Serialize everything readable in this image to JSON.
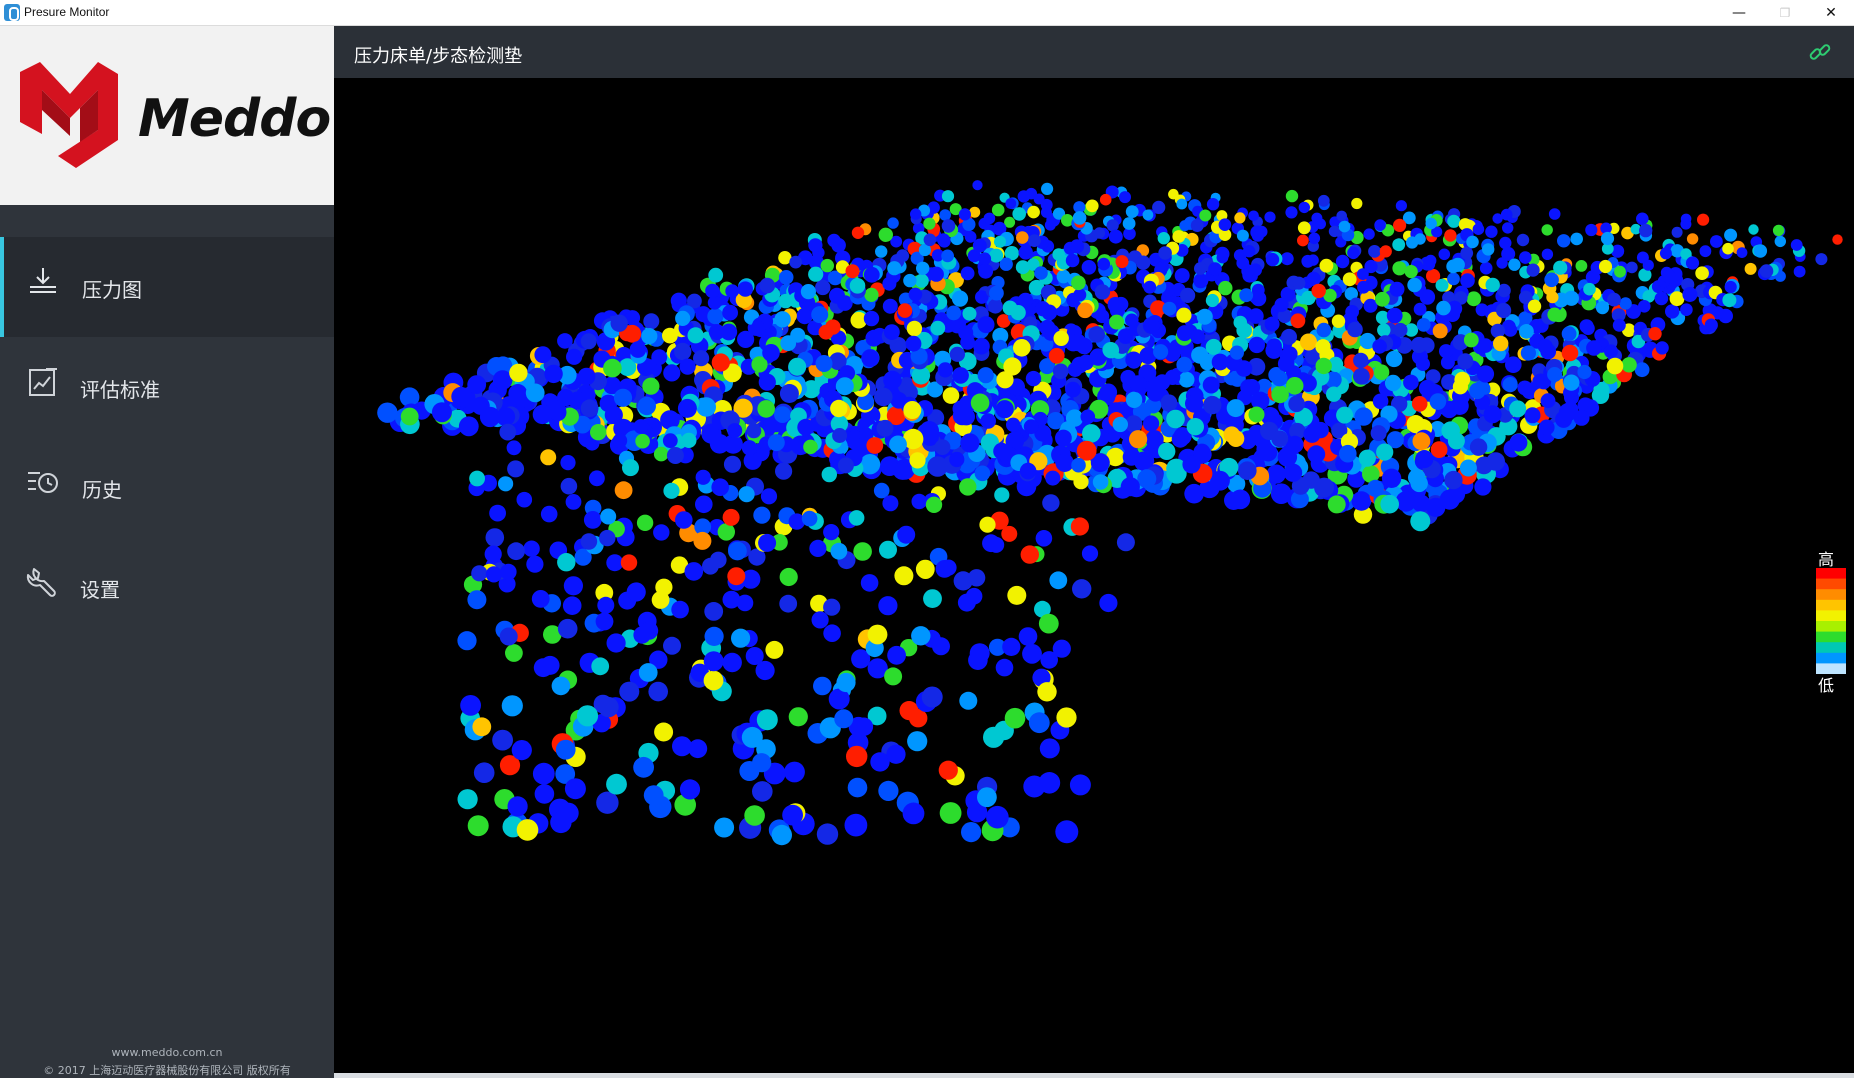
{
  "window": {
    "title": "Presure Monitor",
    "controls": {
      "minimize": "—",
      "maximize": "❐",
      "close": "✕"
    }
  },
  "sidebar": {
    "logo_text": "Meddo",
    "items": [
      {
        "label": "压力图",
        "icon": "download-tray-icon",
        "active": true
      },
      {
        "label": "评估标准",
        "icon": "edit-chart-icon",
        "active": false
      },
      {
        "label": "历史",
        "icon": "history-clock-icon",
        "active": false
      },
      {
        "label": "设置",
        "icon": "wrench-icon",
        "active": false
      }
    ],
    "footer": {
      "website": "www.meddo.com.cn",
      "copyright": "© 2017  上海迈动医疗器械股份有限公司 版权所有"
    }
  },
  "main": {
    "title": "压力床单/步态检测垫",
    "connection_icon": "link-icon",
    "legend": {
      "high_label": "高",
      "low_label": "低",
      "colors": [
        "#ff0000",
        "#ff4a00",
        "#ff8c00",
        "#ffc400",
        "#f2f200",
        "#a8f000",
        "#2ddc2d",
        "#00c8b4",
        "#0096ff",
        "#bde4ff"
      ]
    }
  },
  "colors": {
    "sidebar_bg": "#2f343b",
    "active_indicator": "#38c7e0",
    "header_bg": "#2b3037",
    "viz_bg": "#000000",
    "brand_red": "#d4121f"
  }
}
